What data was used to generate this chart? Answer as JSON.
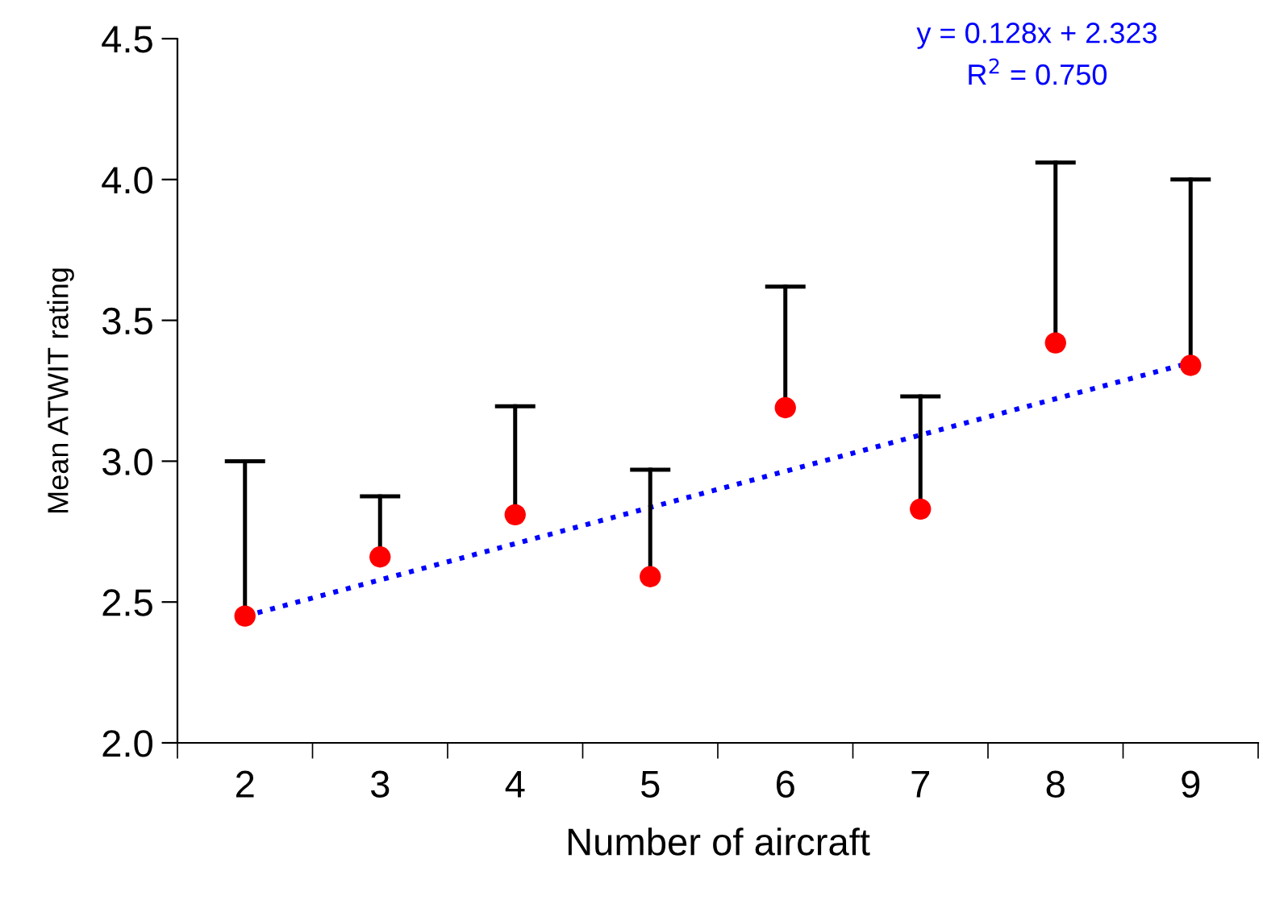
{
  "chart_data": {
    "type": "scatter",
    "xlabel": "Number of aircraft",
    "ylabel": "Mean ATWIT rating",
    "categories": [
      "2",
      "3",
      "4",
      "5",
      "6",
      "7",
      "8",
      "9"
    ],
    "series": [
      {
        "color": "#ff0000",
        "marker": "circle",
        "values": [
          2.45,
          2.66,
          2.81,
          2.59,
          3.19,
          2.83,
          3.42,
          3.34
        ],
        "errors": [
          [
            2.45,
            3.0
          ],
          [
            2.66,
            2.875
          ],
          [
            2.81,
            3.195
          ],
          [
            2.59,
            2.97
          ],
          [
            3.19,
            3.62
          ],
          [
            2.83,
            3.23
          ],
          [
            3.42,
            4.06
          ],
          [
            3.34,
            4.0
          ]
        ]
      },
      {
        "type": "line",
        "color": "#0000ff",
        "line_style": "dotted",
        "x": [
          "2",
          "9"
        ],
        "values": [
          2.45,
          3.35
        ]
      }
    ],
    "ylim": [
      2.0,
      4.5
    ],
    "yticks": [
      {
        "value": 2.0,
        "label": "2.0"
      },
      {
        "value": 2.5,
        "label": "2.5"
      },
      {
        "value": 3.0,
        "label": "3.0"
      },
      {
        "value": 3.5,
        "label": "3.5"
      },
      {
        "value": 4.0,
        "label": "4.0"
      },
      {
        "value": 4.5,
        "label": "4.5"
      }
    ],
    "grid": false,
    "legend": false,
    "annotations": [
      "y = 0.128x + 2.323",
      "R$^{2}$ = 0.750"
    ]
  }
}
